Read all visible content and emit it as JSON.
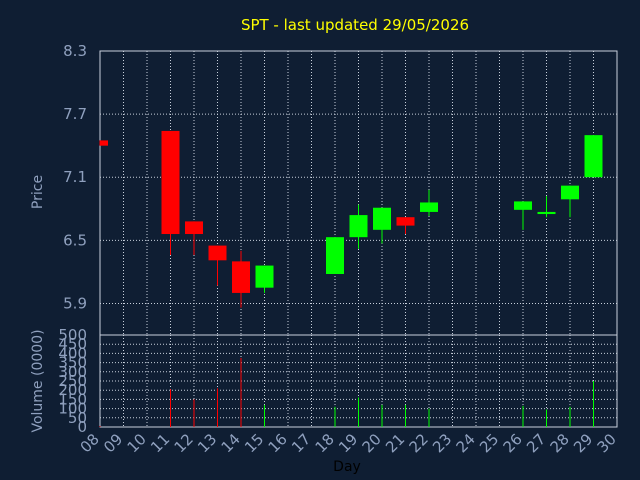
{
  "title": "SPT - last updated 29/05/2026",
  "colors": {
    "background": "#0f1e33",
    "up": "#00ff00",
    "down": "#ff0000",
    "title": "#ffff00",
    "axis_text": "#8fa0be",
    "grid": "#c8d0dc"
  },
  "chart_data": [
    {
      "type": "candlestick",
      "ylabel": "Price",
      "ylim": [
        5.6,
        8.3
      ],
      "yticks": [
        "8.3",
        "7.7",
        "7.1",
        "6.5",
        "5.9"
      ],
      "grid": true,
      "x": [
        "08",
        "11",
        "12",
        "13",
        "14",
        "15",
        "18",
        "19",
        "20",
        "21",
        "22",
        "26",
        "27",
        "28",
        "29"
      ],
      "open": [
        7.45,
        7.54,
        6.68,
        6.45,
        6.3,
        6.05,
        6.18,
        6.53,
        6.6,
        6.72,
        6.77,
        6.79,
        6.75,
        6.89,
        7.1
      ],
      "close": [
        7.4,
        6.56,
        6.56,
        6.31,
        6.0,
        6.26,
        6.53,
        6.74,
        6.81,
        6.64,
        6.86,
        6.87,
        6.77,
        7.02,
        7.5
      ],
      "high": [
        7.45,
        7.54,
        6.68,
        6.45,
        6.4,
        6.26,
        6.53,
        6.84,
        6.81,
        6.72,
        6.98,
        6.87,
        6.92,
        7.02,
        7.5
      ],
      "low": [
        7.4,
        6.36,
        6.36,
        6.07,
        5.86,
        6.0,
        6.18,
        6.42,
        6.47,
        6.56,
        6.73,
        6.6,
        6.72,
        6.72,
        7.1
      ]
    },
    {
      "type": "bar",
      "xlabel": "Day",
      "ylabel": "Volume (0000)",
      "ylim": [
        0,
        500
      ],
      "yticks": [
        "500",
        "450",
        "400",
        "350",
        "300",
        "250",
        "200",
        "150",
        "100",
        "50",
        "0"
      ],
      "xticks": [
        "08",
        "09",
        "10",
        "11",
        "12",
        "13",
        "14",
        "15",
        "16",
        "17",
        "18",
        "19",
        "20",
        "21",
        "22",
        "23",
        "24",
        "25",
        "26",
        "27",
        "28",
        "29",
        "30"
      ],
      "x": [
        "08",
        "11",
        "12",
        "13",
        "14",
        "15",
        "18",
        "19",
        "20",
        "21",
        "22",
        "26",
        "27",
        "28",
        "29"
      ],
      "values": [
        5,
        205,
        150,
        210,
        375,
        120,
        110,
        160,
        120,
        120,
        100,
        115,
        95,
        110,
        250
      ],
      "direction": [
        "down",
        "down",
        "down",
        "down",
        "down",
        "up",
        "up",
        "up",
        "up",
        "up",
        "up",
        "up",
        "up",
        "up",
        "up"
      ]
    }
  ]
}
